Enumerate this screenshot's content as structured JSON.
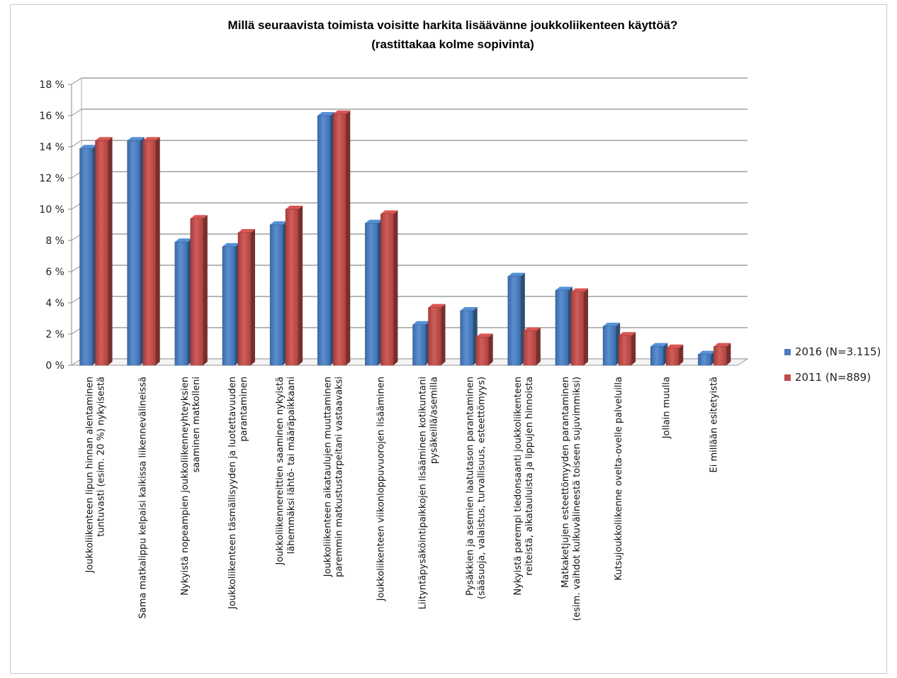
{
  "chart_data": {
    "type": "bar",
    "title": "Millä seuraavista toimista voisitte harkita lisäävänne joukkoliikenteen käyttöä?",
    "subtitle": "(rastittakaa kolme sopivinta)",
    "xlabel": "",
    "ylabel": "",
    "ylim": [
      0,
      18
    ],
    "yticks": [
      "0 %",
      "2 %",
      "4 %",
      "6 %",
      "8 %",
      "10 %",
      "12 %",
      "14 %",
      "16 %",
      "18 %"
    ],
    "grid": true,
    "legend_position": "right",
    "categories": [
      [
        "Joukkoliikenteen lipun hinnan alentaminen",
        "tuntuvasti (esim. 20 %) nykyisestä"
      ],
      [
        "Sama matkalippu kelpaisi kaikissa liikennevälineissä"
      ],
      [
        "Nykyistä nopeampien joukkoliikenneyhteyksien",
        "saaminen matkolleni"
      ],
      [
        "Joukkoliikenteen täsmällisyyden ja luotettavuuden",
        "parantaminen"
      ],
      [
        "Joukkoliikennereittien saaminen nykyistä",
        "lähemmäksi lähtö- tai määräpaikkaani"
      ],
      [
        "Joukkoliikenteen aikataulujen muuttaminen",
        "paremmin matkustustarpeitani vastaavaksi"
      ],
      [
        "Joukkoliikenteen viikonloppuvuorojen lisääminen"
      ],
      [
        "Liityntäpysäköintipaikkojen lisääminen kotikuntani",
        "pysäkeillä/asemilla"
      ],
      [
        "Pysäkkien ja asemien laatutason parantaminen",
        "(sääsuoja, valaistus, turvallisuus, esteettömyys)"
      ],
      [
        "Nykyistä parempi tiedonsaanti joukkoliikenteen",
        "reiteistä, aikatauluista ja lippujen hinnoista"
      ],
      [
        "Matkaketjujen esteettömyyden parantaminen",
        "(esim. vaihdot kulkuvälineestä toiseen sujuvimmiksi)"
      ],
      [
        "Kutsujoukkoliikenne ovelta-ovelle palveluilla"
      ],
      [
        "Jollain muulla"
      ],
      [
        "Ei millään esitetyistä"
      ]
    ],
    "series": [
      {
        "name": "2016 (N=3.115)",
        "color": "#4a7ebb",
        "values": [
          13.9,
          14.4,
          7.9,
          7.6,
          9.0,
          16.0,
          9.1,
          2.6,
          3.5,
          5.7,
          4.8,
          2.5,
          1.2,
          0.7
        ]
      },
      {
        "name": "2011 (N=889)",
        "color": "#be4b48",
        "values": [
          14.4,
          14.4,
          9.4,
          8.5,
          10.0,
          16.1,
          9.7,
          3.7,
          1.8,
          2.2,
          4.7,
          1.9,
          1.1,
          1.2
        ]
      }
    ]
  }
}
